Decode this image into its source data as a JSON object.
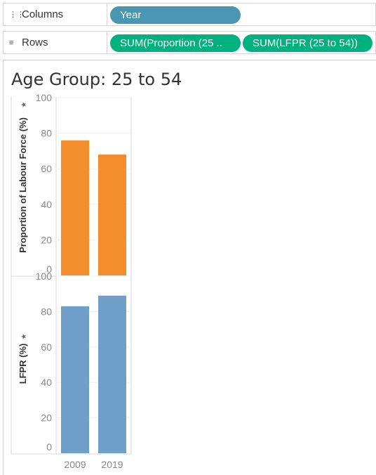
{
  "shelves": {
    "columns": {
      "label": "Columns",
      "icon": "columns-icon",
      "pills": [
        "Year"
      ]
    },
    "rows": {
      "label": "Rows",
      "icon": "rows-icon",
      "pills": [
        "SUM(Proportion (25 ..",
        "SUM(LFPR (25 to 54))"
      ]
    }
  },
  "sheet_title": "Age Group: 25 to 54",
  "colors": {
    "dimension_pill": "#4996b2",
    "measure_pill": "#00b180",
    "orange": "#f28e2b",
    "blue": "#6f9fc8"
  },
  "chart_data": [
    {
      "type": "bar",
      "categories": [
        "2009",
        "2019"
      ],
      "values": [
        76,
        68
      ],
      "ylabel": "Proportion of Labour Force (%)",
      "ylim": [
        0,
        100
      ],
      "yticks": [
        0,
        20,
        40,
        60,
        80,
        100
      ],
      "color": "#f28e2b",
      "grid": true
    },
    {
      "type": "bar",
      "categories": [
        "2009",
        "2019"
      ],
      "values": [
        83,
        89
      ],
      "ylabel": "LFPR (%)",
      "ylim": [
        0,
        100
      ],
      "yticks": [
        0,
        20,
        40,
        60,
        80,
        100
      ],
      "color": "#6f9fc8",
      "grid": true
    }
  ]
}
